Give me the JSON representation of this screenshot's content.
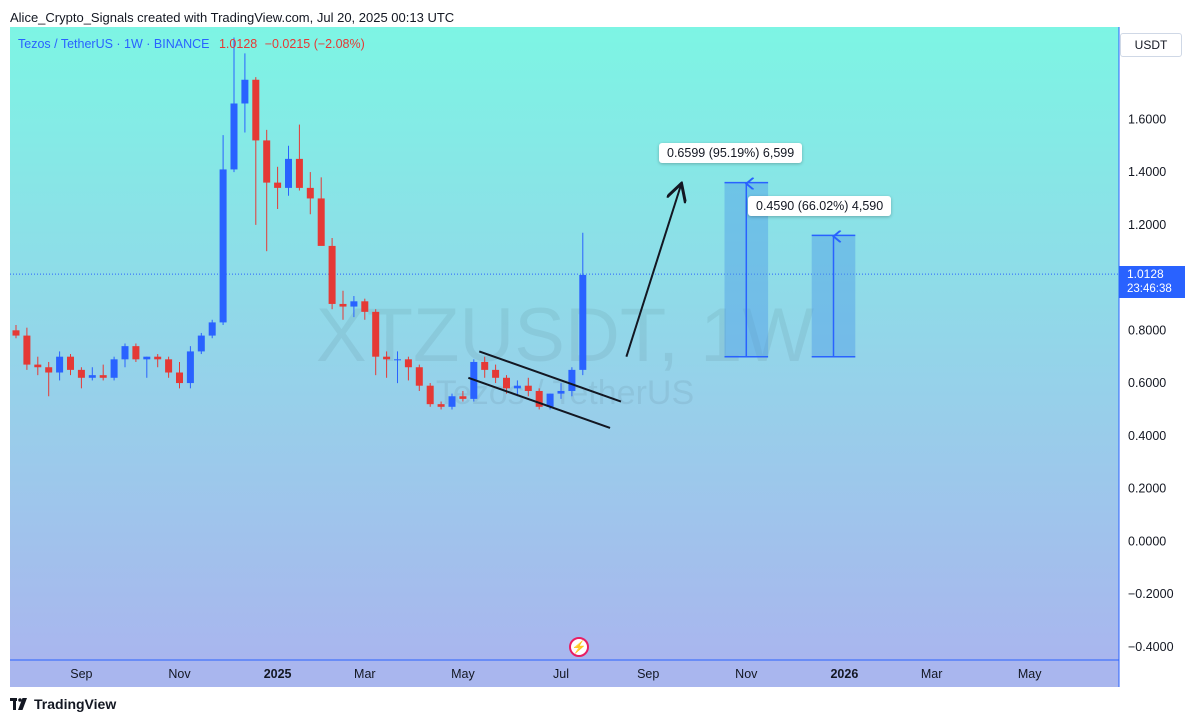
{
  "header": {
    "credit": "Alice_Crypto_Signals created with TradingView.com, Jul 20, 2025 00:13 UTC"
  },
  "legend": {
    "symbol": "Tezos / TetherUS · 1W · BINANCE",
    "price": "1.0128",
    "change": "−0.0215 (−2.08%)"
  },
  "watermark": {
    "ticker": "XTZUSDT, 1W",
    "name": "Tezos / TetherUS"
  },
  "price_scale": {
    "currency": "USDT",
    "current_price": "1.0128",
    "countdown": "23:46:38"
  },
  "callouts": {
    "target_1": "0.6599 (95.19%) 6,599",
    "target_2": "0.4590 (66.02%) 4,590"
  },
  "footer": {
    "brand": "TradingView"
  },
  "colors": {
    "up": "#2962ff",
    "down": "#e53935",
    "bg_top": "#7df5e4",
    "bg_bottom": "#a9b6ee",
    "measure_fill": "#4d9be6"
  },
  "chart_data": {
    "type": "candlestick",
    "ylim": [
      -0.45,
      1.95
    ],
    "y_ticks": [
      "1.6000",
      "1.4000",
      "1.2000",
      "0.8000",
      "0.6000",
      "0.4000",
      "0.2000",
      "0.0000",
      "−0.2000",
      "−0.4000"
    ],
    "y_tick_values": [
      1.6,
      1.4,
      1.2,
      0.8,
      0.6,
      0.4,
      0.2,
      0.0,
      -0.2,
      -0.4
    ],
    "x_ticks": [
      {
        "label": "Sep",
        "bar": 6
      },
      {
        "label": "Nov",
        "bar": 15
      },
      {
        "label": "2025",
        "bar": 24,
        "bold": true
      },
      {
        "label": "Mar",
        "bar": 32
      },
      {
        "label": "May",
        "bar": 41
      },
      {
        "label": "Jul",
        "bar": 50
      },
      {
        "label": "Sep",
        "bar": 58
      },
      {
        "label": "Nov",
        "bar": 67
      },
      {
        "label": "2026",
        "bar": 76,
        "bold": true
      },
      {
        "label": "Mar",
        "bar": 84
      },
      {
        "label": "May",
        "bar": 93
      }
    ],
    "candles": [
      [
        0.8,
        0.82,
        0.77,
        0.78
      ],
      [
        0.78,
        0.81,
        0.65,
        0.67
      ],
      [
        0.67,
        0.7,
        0.63,
        0.66
      ],
      [
        0.66,
        0.68,
        0.55,
        0.64
      ],
      [
        0.64,
        0.72,
        0.61,
        0.7
      ],
      [
        0.7,
        0.71,
        0.63,
        0.65
      ],
      [
        0.65,
        0.66,
        0.58,
        0.62
      ],
      [
        0.62,
        0.66,
        0.61,
        0.63
      ],
      [
        0.63,
        0.67,
        0.61,
        0.62
      ],
      [
        0.62,
        0.7,
        0.61,
        0.69
      ],
      [
        0.69,
        0.75,
        0.66,
        0.74
      ],
      [
        0.74,
        0.75,
        0.68,
        0.69
      ],
      [
        0.69,
        0.7,
        0.62,
        0.7
      ],
      [
        0.7,
        0.71,
        0.66,
        0.69
      ],
      [
        0.69,
        0.7,
        0.62,
        0.64
      ],
      [
        0.64,
        0.68,
        0.58,
        0.6
      ],
      [
        0.6,
        0.74,
        0.58,
        0.72
      ],
      [
        0.72,
        0.79,
        0.71,
        0.78
      ],
      [
        0.78,
        0.84,
        0.77,
        0.83
      ],
      [
        0.83,
        1.54,
        0.82,
        1.41
      ],
      [
        1.41,
        1.91,
        1.4,
        1.66
      ],
      [
        1.66,
        1.85,
        1.55,
        1.75
      ],
      [
        1.75,
        1.76,
        1.2,
        1.52
      ],
      [
        1.52,
        1.56,
        1.1,
        1.36
      ],
      [
        1.36,
        1.42,
        1.26,
        1.34
      ],
      [
        1.34,
        1.5,
        1.31,
        1.45
      ],
      [
        1.45,
        1.58,
        1.33,
        1.34
      ],
      [
        1.34,
        1.4,
        1.24,
        1.3
      ],
      [
        1.3,
        1.38,
        1.13,
        1.12
      ],
      [
        1.12,
        1.15,
        0.88,
        0.9
      ],
      [
        0.9,
        0.95,
        0.84,
        0.89
      ],
      [
        0.89,
        0.93,
        0.85,
        0.91
      ],
      [
        0.91,
        0.92,
        0.84,
        0.87
      ],
      [
        0.87,
        0.88,
        0.63,
        0.7
      ],
      [
        0.7,
        0.72,
        0.62,
        0.69
      ],
      [
        0.69,
        0.72,
        0.6,
        0.69
      ],
      [
        0.69,
        0.7,
        0.61,
        0.66
      ],
      [
        0.66,
        0.67,
        0.57,
        0.59
      ],
      [
        0.59,
        0.6,
        0.51,
        0.52
      ],
      [
        0.52,
        0.53,
        0.5,
        0.51
      ],
      [
        0.51,
        0.56,
        0.5,
        0.55
      ],
      [
        0.55,
        0.57,
        0.53,
        0.54
      ],
      [
        0.54,
        0.69,
        0.53,
        0.68
      ],
      [
        0.68,
        0.7,
        0.62,
        0.65
      ],
      [
        0.65,
        0.67,
        0.6,
        0.62
      ],
      [
        0.62,
        0.63,
        0.56,
        0.58
      ],
      [
        0.58,
        0.61,
        0.55,
        0.59
      ],
      [
        0.59,
        0.62,
        0.55,
        0.57
      ],
      [
        0.57,
        0.58,
        0.5,
        0.51
      ],
      [
        0.51,
        0.56,
        0.5,
        0.56
      ],
      [
        0.56,
        0.6,
        0.54,
        0.57
      ],
      [
        0.57,
        0.66,
        0.55,
        0.65
      ],
      [
        0.65,
        1.17,
        0.63,
        1.01
      ]
    ],
    "current_price": 1.0128,
    "channel": {
      "upper": [
        [
          42.5,
          0.72
        ],
        [
          55.5,
          0.53
        ]
      ],
      "lower": [
        [
          41.5,
          0.62
        ],
        [
          54.5,
          0.43
        ]
      ]
    },
    "arrow": {
      "from": [
        56,
        0.7
      ],
      "to": [
        61,
        1.35
      ]
    },
    "targets": [
      {
        "bar_start": 65,
        "bar_end": 69,
        "from": 0.7,
        "to": 1.36
      },
      {
        "bar_start": 73,
        "bar_end": 77,
        "from": 0.7,
        "to": 1.16
      }
    ]
  }
}
